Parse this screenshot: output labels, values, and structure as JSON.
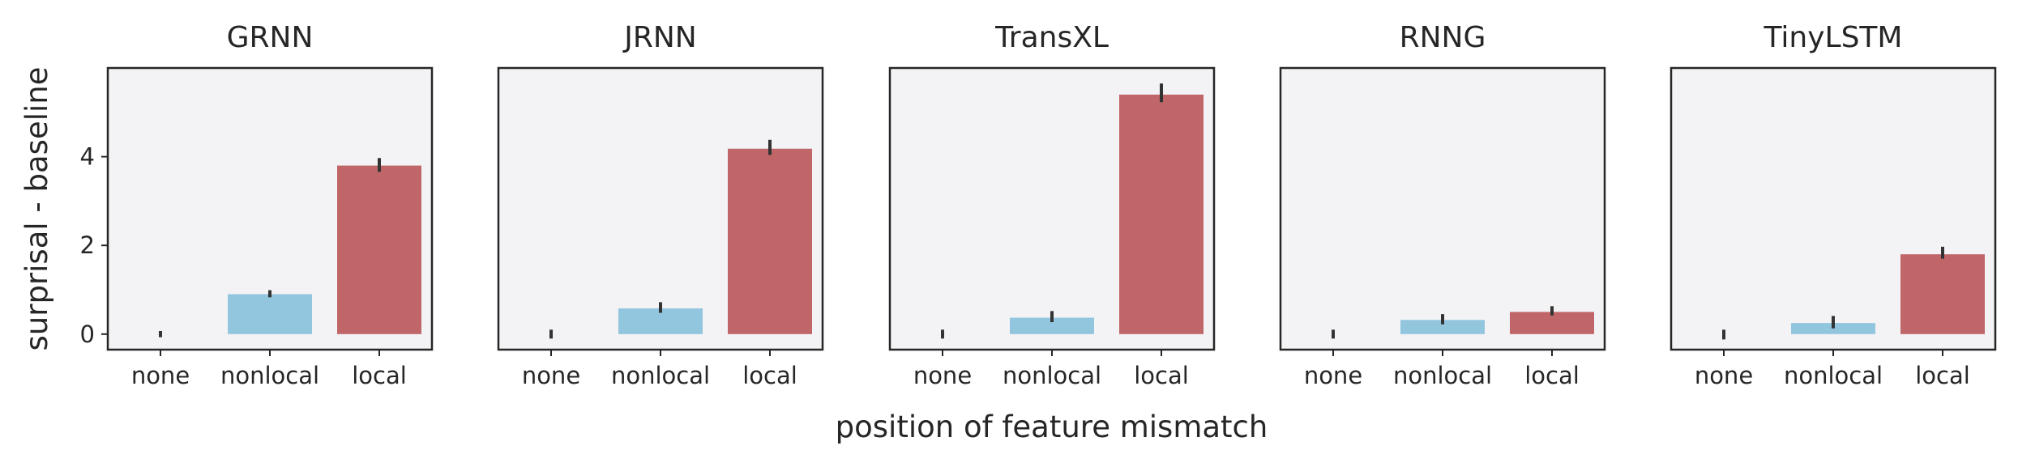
{
  "figure": {
    "ylabel": "surprisal - baseline",
    "xlabel": "position of feature mismatch",
    "colors": {
      "panel_bg": "#f3f3f6",
      "axis": "#262626",
      "none": "#f3f3f6",
      "nonlocal": "#92c6de",
      "local": "#c06668",
      "errorbar": "#333333"
    }
  },
  "chart_data": [
    {
      "type": "bar",
      "title": "GRNN",
      "categories": [
        "none",
        "nonlocal",
        "local"
      ],
      "values": [
        0.0,
        0.9,
        3.8
      ],
      "error_low": [
        -0.07,
        0.83,
        3.66
      ],
      "error_high": [
        0.07,
        0.99,
        3.97
      ],
      "ylim": [
        -0.35,
        6.0
      ],
      "yticks": [
        0,
        2,
        4
      ]
    },
    {
      "type": "bar",
      "title": "JRNN",
      "categories": [
        "none",
        "nonlocal",
        "local"
      ],
      "values": [
        0.0,
        0.58,
        4.18
      ],
      "error_low": [
        -0.1,
        0.48,
        4.04
      ],
      "error_high": [
        0.1,
        0.72,
        4.38
      ],
      "ylim": [
        -0.35,
        6.0
      ],
      "yticks": [
        0,
        2,
        4
      ]
    },
    {
      "type": "bar",
      "title": "TransXL",
      "categories": [
        "none",
        "nonlocal",
        "local"
      ],
      "values": [
        0.0,
        0.37,
        5.4
      ],
      "error_low": [
        -0.1,
        0.27,
        5.23
      ],
      "error_high": [
        0.1,
        0.52,
        5.65
      ],
      "ylim": [
        -0.35,
        6.0
      ],
      "yticks": [
        0,
        2,
        4
      ]
    },
    {
      "type": "bar",
      "title": "RNNG",
      "categories": [
        "none",
        "nonlocal",
        "local"
      ],
      "values": [
        0.0,
        0.32,
        0.5
      ],
      "error_low": [
        -0.1,
        0.22,
        0.42
      ],
      "error_high": [
        0.1,
        0.45,
        0.63
      ],
      "ylim": [
        -0.35,
        6.0
      ],
      "yticks": [
        0,
        2,
        4
      ]
    },
    {
      "type": "bar",
      "title": "TinyLSTM",
      "categories": [
        "none",
        "nonlocal",
        "local"
      ],
      "values": [
        0.0,
        0.25,
        1.8
      ],
      "error_low": [
        -0.12,
        0.13,
        1.7
      ],
      "error_high": [
        0.1,
        0.41,
        1.97
      ],
      "ylim": [
        -0.35,
        6.0
      ],
      "yticks": [
        0,
        2,
        4
      ]
    }
  ]
}
